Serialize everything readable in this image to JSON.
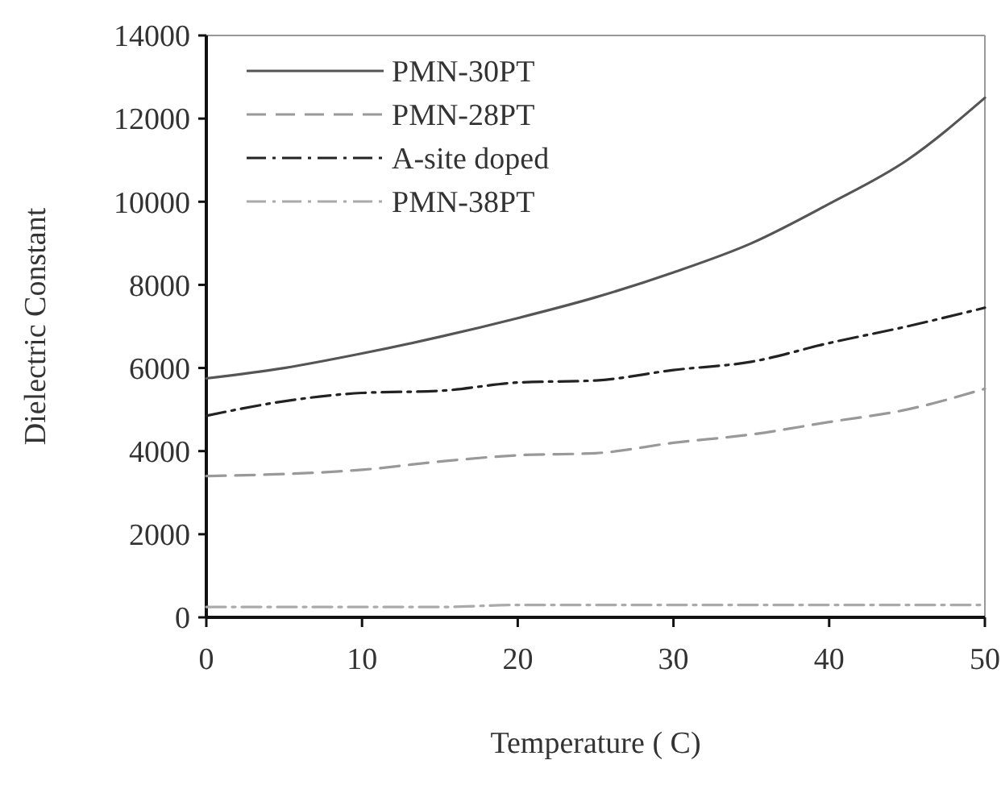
{
  "chart_data": {
    "type": "line",
    "xlabel": "Temperature ( C)",
    "ylabel": "Dielectric Constant",
    "x": [
      0,
      5,
      10,
      15,
      20,
      25,
      30,
      35,
      40,
      45,
      50
    ],
    "xlim": [
      0,
      50
    ],
    "xticks": [
      0,
      10,
      20,
      30,
      40,
      50
    ],
    "ylim": [
      0,
      14000
    ],
    "yticks": [
      0,
      2000,
      4000,
      6000,
      8000,
      10000,
      12000,
      14000
    ],
    "legend": "top left",
    "grid": false,
    "marker": "none",
    "series": [
      {
        "name": "PMN-30PT",
        "color": "#555555",
        "line_style": "solid",
        "values": [
          5750,
          6000,
          6350,
          6750,
          7200,
          7700,
          8300,
          9000,
          9950,
          11000,
          12500
        ]
      },
      {
        "name": "PMN-28PT",
        "color": "#999999",
        "line_style": "dashed",
        "values": [
          3400,
          3450,
          3550,
          3750,
          3900,
          3950,
          4200,
          4400,
          4700,
          5000,
          5500
        ]
      },
      {
        "name": "A-site doped",
        "color": "#222222",
        "line_style": "dashdot",
        "values": [
          4850,
          5200,
          5400,
          5450,
          5650,
          5700,
          5950,
          6150,
          6600,
          7000,
          7450
        ]
      },
      {
        "name": "PMN-38PT",
        "color": "#aaaaaa",
        "line_style": "dashdot",
        "values": [
          250,
          250,
          250,
          250,
          300,
          300,
          300,
          300,
          300,
          300,
          300
        ]
      }
    ]
  }
}
